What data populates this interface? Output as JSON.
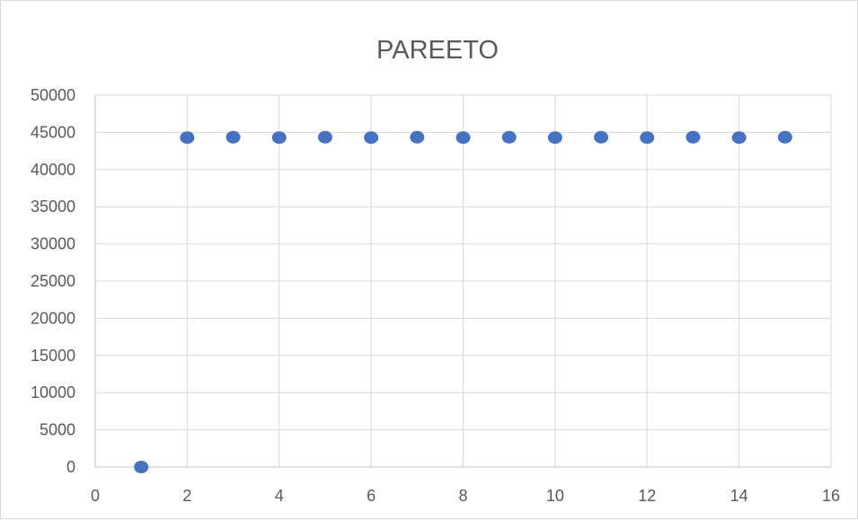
{
  "chart_data": {
    "type": "scatter",
    "title": "PAREETO",
    "xlabel": "",
    "ylabel": "",
    "xlim": [
      0,
      16
    ],
    "ylim": [
      0,
      50000
    ],
    "x_ticks": [
      0,
      2,
      4,
      6,
      8,
      10,
      12,
      14,
      16
    ],
    "y_ticks": [
      0,
      5000,
      10000,
      15000,
      20000,
      25000,
      30000,
      35000,
      40000,
      45000,
      50000
    ],
    "grid": true,
    "legend": "none",
    "marker_color": "#4472c4",
    "series": [
      {
        "x": [
          1,
          2,
          3,
          4,
          5,
          6,
          7,
          8,
          9,
          10,
          11,
          12,
          13,
          14,
          15
        ],
        "y": [
          0,
          44300,
          44350,
          44300,
          44350,
          44300,
          44350,
          44300,
          44350,
          44300,
          44350,
          44300,
          44350,
          44300,
          44350
        ]
      }
    ]
  }
}
